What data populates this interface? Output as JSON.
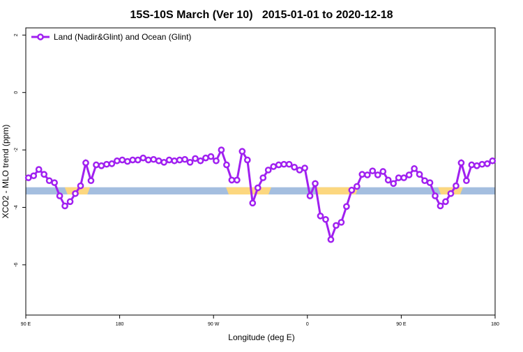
{
  "chart_data": {
    "type": "line",
    "title": "15S-10S March (Ver 10)   2015-01-01 to 2020-12-18",
    "xlabel": "Longitude (deg E)",
    "ylabel": "XCO2 - MLO trend (ppm)",
    "xlim": [
      90,
      540
    ],
    "xticks": [
      {
        "value": 90,
        "label": "90 E"
      },
      180,
      {
        "value": 270,
        "label": "90 W"
      },
      {
        "value": 360,
        "label": "0"
      },
      {
        "value": 450,
        "label": "90 E"
      },
      {
        "value": 540,
        "label": "180"
      }
    ],
    "ylim": [
      -7.75,
      2.25
    ],
    "yticks": [
      2,
      0,
      -2,
      -4,
      -6
    ],
    "grid": false,
    "legend": "top-left",
    "surface_band": {
      "ylim": [
        -3.3,
        -3.55
      ],
      "color": "#a4bedf",
      "land_color": "#fcd77f",
      "land_spans": [
        [
          130,
          149
        ],
        [
          284.6,
          322.7
        ],
        [
          369.5,
          406.3
        ],
        [
          488,
          506.5
        ]
      ]
    },
    "series": [
      {
        "name": "Land (Nadir&Glint) and Ocean (Glint)",
        "color": "#a020f0",
        "x": [
          92.5,
          97.5,
          102.5,
          107.5,
          112.5,
          117.5,
          122.5,
          127.5,
          132.5,
          137.5,
          142.5,
          147.5,
          152.5,
          157.5,
          162.5,
          167.5,
          172.5,
          177.5,
          182.5,
          187.5,
          192.5,
          197.5,
          202.5,
          207.5,
          212.5,
          217.5,
          222.5,
          227.5,
          232.5,
          237.5,
          242.5,
          247.5,
          252.5,
          257.5,
          262.5,
          267.5,
          272.5,
          277.5,
          282.5,
          287.5,
          292.5,
          297.5,
          302.5,
          307.5,
          312.5,
          317.5,
          322.5,
          327.5,
          332.5,
          337.5,
          342.5,
          347.5,
          352.5,
          357.5,
          362.5,
          367.5,
          372.5,
          377.5,
          382.5,
          387.5,
          392.5,
          397.5,
          402.5,
          407.5,
          412.5,
          417.5,
          422.5,
          427.5,
          432.5,
          437.5,
          442.5,
          447.5,
          452.5,
          457.5,
          462.5,
          467.5,
          472.5,
          477.5,
          482.5,
          487.5,
          492.5,
          497.5,
          502.5,
          507.5,
          512.5,
          517.5,
          522.5,
          527.5,
          532.5,
          537.5
        ],
        "values": [
          -2.97,
          -2.9,
          -2.68,
          -2.85,
          -3.07,
          -3.14,
          -3.6,
          -3.95,
          -3.8,
          -3.52,
          -3.25,
          -2.45,
          -3.07,
          -2.52,
          -2.55,
          -2.5,
          -2.48,
          -2.38,
          -2.35,
          -2.4,
          -2.35,
          -2.35,
          -2.28,
          -2.35,
          -2.33,
          -2.38,
          -2.43,
          -2.35,
          -2.38,
          -2.35,
          -2.33,
          -2.43,
          -2.3,
          -2.38,
          -2.28,
          -2.23,
          -2.38,
          -2.0,
          -2.52,
          -3.05,
          -3.05,
          -2.05,
          -2.35,
          -3.85,
          -3.32,
          -2.97,
          -2.7,
          -2.58,
          -2.52,
          -2.5,
          -2.5,
          -2.6,
          -2.7,
          -2.63,
          -3.6,
          -3.17,
          -4.3,
          -4.42,
          -5.12,
          -4.63,
          -4.52,
          -3.97,
          -3.4,
          -3.27,
          -2.85,
          -2.87,
          -2.73,
          -2.87,
          -2.75,
          -3.05,
          -3.17,
          -2.97,
          -2.97,
          -2.87,
          -2.65,
          -2.85,
          -3.07,
          -3.14,
          -3.6,
          -3.95,
          -3.8,
          -3.52,
          -3.25,
          -2.45,
          -3.07,
          -2.52,
          -2.55,
          -2.5,
          -2.48,
          -2.38
        ]
      }
    ]
  }
}
